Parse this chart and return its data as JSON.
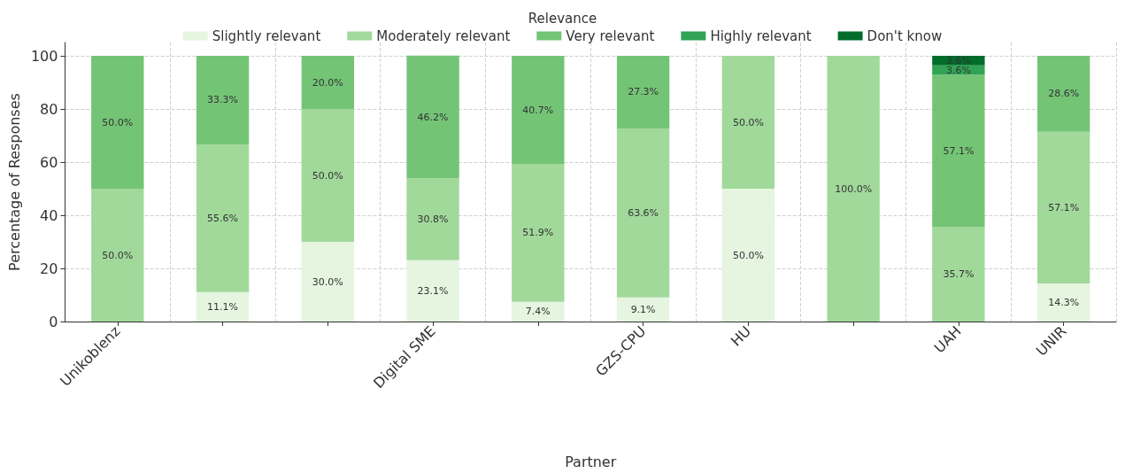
{
  "chart_data": {
    "type": "bar",
    "stacked": true,
    "xlabel": "Partner",
    "ylabel": "Percentage of Responses",
    "legend_title": "Relevance",
    "legend": "top",
    "grid": true,
    "categories": [
      "Unikoblenz",
      null,
      null,
      "Digital SME",
      null,
      "GZS-CPU",
      "HU",
      null,
      "UAH",
      "UNIR"
    ],
    "ylim": [
      0,
      105
    ],
    "yticks": [
      0,
      20,
      40,
      60,
      80,
      100
    ],
    "series": [
      {
        "name": "Slightly relevant",
        "color": "#e5f5e0",
        "values": [
          null,
          11.1,
          30.0,
          23.1,
          7.4,
          9.1,
          50.0,
          null,
          null,
          14.3
        ],
        "value_labels": [
          null,
          "11.1%",
          "30.0%",
          "23.1%",
          "7.4%",
          "9.1%",
          "50.0%",
          null,
          null,
          "14.3%"
        ]
      },
      {
        "name": "Moderately relevant",
        "color": "#a1d99b",
        "values": [
          50.0,
          55.6,
          50.0,
          30.8,
          51.9,
          63.6,
          50.0,
          100.0,
          35.7,
          57.1
        ],
        "value_labels": [
          "50.0%",
          "55.6%",
          "50.0%",
          "30.8%",
          "51.9%",
          "63.6%",
          "50.0%",
          "100.0%",
          "35.7%",
          "57.1%"
        ]
      },
      {
        "name": "Very relevant",
        "color": "#74c476",
        "values": [
          50.0,
          33.3,
          20.0,
          46.2,
          40.7,
          27.3,
          null,
          null,
          57.1,
          28.6
        ],
        "value_labels": [
          "50.0%",
          "33.3%",
          "20.0%",
          "46.2%",
          "40.7%",
          "27.3%",
          null,
          null,
          "57.1%",
          "28.6%"
        ]
      },
      {
        "name": "Highly relevant",
        "color": "#31a354",
        "values": [
          null,
          null,
          null,
          null,
          null,
          null,
          null,
          null,
          3.6,
          null
        ],
        "value_labels": [
          null,
          null,
          null,
          null,
          null,
          null,
          null,
          null,
          "3.6%",
          null
        ]
      },
      {
        "name": "Don't know",
        "color": "#006d2c",
        "values": [
          null,
          null,
          null,
          null,
          null,
          null,
          null,
          null,
          3.6,
          null
        ],
        "value_labels": [
          null,
          null,
          null,
          null,
          null,
          null,
          null,
          null,
          "3.6%",
          null
        ]
      }
    ]
  }
}
